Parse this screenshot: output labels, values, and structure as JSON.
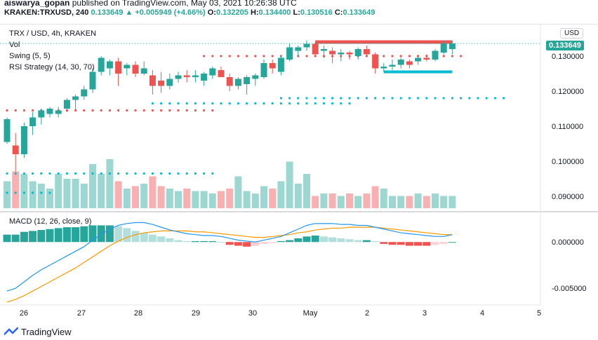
{
  "header": {
    "author": "aiswarya_gopan",
    "published_text": "published on TradingView.com, May 03, 2021 10:26:38 UTC",
    "symbol": "KRAKEN:TRXUSD, 240",
    "last": "0.133649",
    "change": "▲ +0.005949 (+4.66%)",
    "open_label": "O:",
    "open": "0.132205",
    "high_label": "H:",
    "high": "0.134400",
    "low_label": "L:",
    "low": "0.130516",
    "close_label": "C:",
    "close": "0.133649"
  },
  "legend": {
    "title": "TRX / USD, 4h, KRAKEN",
    "vol": "Vol",
    "swing": "Swing (5, 5)",
    "rsi": "RSI Strategy (14, 30, 70)",
    "macd": "MACD (12, 26, close, 9)"
  },
  "currency_button": "USD",
  "price_badge": "0.133649",
  "footer": {
    "brand": "TradingView"
  },
  "colors": {
    "up": "#26a69a",
    "down": "#ef5350",
    "macd": "#2196f3",
    "signal": "#ff9800",
    "swing_high": "#ef5350",
    "swing_low": "#00bcd4"
  },
  "chart_data": [
    {
      "type": "candlestick",
      "title": "TRX / USD, 4h, KRAKEN",
      "x_ticks": [
        "26",
        "27",
        "28",
        "29",
        "30",
        "May",
        "2",
        "3",
        "4",
        "5"
      ],
      "y_ticks": [
        "0.130000",
        "0.120000",
        "0.110000",
        "0.100000",
        "0.090000"
      ],
      "ylim": [
        0.086,
        0.139
      ],
      "candles": [
        {
          "o": 0.1055,
          "h": 0.1125,
          "l": 0.105,
          "c": 0.112
        },
        {
          "o": 0.1045,
          "h": 0.108,
          "l": 0.097,
          "c": 0.102
        },
        {
          "o": 0.102,
          "h": 0.111,
          "l": 0.101,
          "c": 0.11
        },
        {
          "o": 0.11,
          "h": 0.114,
          "l": 0.1075,
          "c": 0.1125
        },
        {
          "o": 0.1125,
          "h": 0.115,
          "l": 0.1105,
          "c": 0.1145
        },
        {
          "o": 0.1135,
          "h": 0.1155,
          "l": 0.1125,
          "c": 0.115
        },
        {
          "o": 0.1135,
          "h": 0.1155,
          "l": 0.1125,
          "c": 0.1145
        },
        {
          "o": 0.115,
          "h": 0.118,
          "l": 0.114,
          "c": 0.1175
        },
        {
          "o": 0.1175,
          "h": 0.119,
          "l": 0.1145,
          "c": 0.1185
        },
        {
          "o": 0.1185,
          "h": 0.1215,
          "l": 0.1175,
          "c": 0.1205
        },
        {
          "o": 0.1205,
          "h": 0.1265,
          "l": 0.1195,
          "c": 0.1255
        },
        {
          "o": 0.1255,
          "h": 0.13,
          "l": 0.1245,
          "c": 0.1295
        },
        {
          "o": 0.1265,
          "h": 0.129,
          "l": 0.1245,
          "c": 0.1285
        },
        {
          "o": 0.1285,
          "h": 0.1295,
          "l": 0.1215,
          "c": 0.125
        },
        {
          "o": 0.1265,
          "h": 0.128,
          "l": 0.1245,
          "c": 0.1275
        },
        {
          "o": 0.1275,
          "h": 0.1285,
          "l": 0.124,
          "c": 0.125
        },
        {
          "o": 0.125,
          "h": 0.1285,
          "l": 0.1245,
          "c": 0.1265
        },
        {
          "o": 0.1245,
          "h": 0.126,
          "l": 0.119,
          "c": 0.1215
        },
        {
          "o": 0.123,
          "h": 0.1255,
          "l": 0.1195,
          "c": 0.1215
        },
        {
          "o": 0.1215,
          "h": 0.125,
          "l": 0.1205,
          "c": 0.1235
        },
        {
          "o": 0.1235,
          "h": 0.1255,
          "l": 0.1225,
          "c": 0.1245
        },
        {
          "o": 0.1245,
          "h": 0.126,
          "l": 0.1225,
          "c": 0.124
        },
        {
          "o": 0.124,
          "h": 0.126,
          "l": 0.1225,
          "c": 0.1245
        },
        {
          "o": 0.123,
          "h": 0.1255,
          "l": 0.1215,
          "c": 0.125
        },
        {
          "o": 0.1245,
          "h": 0.127,
          "l": 0.1235,
          "c": 0.1265
        },
        {
          "o": 0.126,
          "h": 0.127,
          "l": 0.124,
          "c": 0.124
        },
        {
          "o": 0.124,
          "h": 0.125,
          "l": 0.12,
          "c": 0.1215
        },
        {
          "o": 0.1215,
          "h": 0.124,
          "l": 0.1205,
          "c": 0.1235
        },
        {
          "o": 0.122,
          "h": 0.1245,
          "l": 0.119,
          "c": 0.124
        },
        {
          "o": 0.1235,
          "h": 0.125,
          "l": 0.1215,
          "c": 0.1245
        },
        {
          "o": 0.124,
          "h": 0.129,
          "l": 0.1235,
          "c": 0.128
        },
        {
          "o": 0.128,
          "h": 0.129,
          "l": 0.125,
          "c": 0.1265
        },
        {
          "o": 0.1255,
          "h": 0.13,
          "l": 0.1245,
          "c": 0.1295
        },
        {
          "o": 0.129,
          "h": 0.1335,
          "l": 0.1285,
          "c": 0.1325
        },
        {
          "o": 0.1315,
          "h": 0.133,
          "l": 0.13,
          "c": 0.1325
        },
        {
          "o": 0.1325,
          "h": 0.1345,
          "l": 0.1315,
          "c": 0.1335
        },
        {
          "o": 0.1335,
          "h": 0.134,
          "l": 0.13,
          "c": 0.1305
        },
        {
          "o": 0.1315,
          "h": 0.133,
          "l": 0.1295,
          "c": 0.132
        },
        {
          "o": 0.1315,
          "h": 0.1325,
          "l": 0.128,
          "c": 0.1305
        },
        {
          "o": 0.1305,
          "h": 0.132,
          "l": 0.1285,
          "c": 0.131
        },
        {
          "o": 0.131,
          "h": 0.1315,
          "l": 0.129,
          "c": 0.1305
        },
        {
          "o": 0.13,
          "h": 0.1325,
          "l": 0.129,
          "c": 0.132
        },
        {
          "o": 0.132,
          "h": 0.133,
          "l": 0.13,
          "c": 0.1305
        },
        {
          "o": 0.1305,
          "h": 0.131,
          "l": 0.125,
          "c": 0.1265
        },
        {
          "o": 0.1265,
          "h": 0.128,
          "l": 0.1255,
          "c": 0.127
        },
        {
          "o": 0.127,
          "h": 0.129,
          "l": 0.126,
          "c": 0.1275
        },
        {
          "o": 0.1275,
          "h": 0.1295,
          "l": 0.1265,
          "c": 0.129
        },
        {
          "o": 0.1285,
          "h": 0.129,
          "l": 0.1265,
          "c": 0.1275
        },
        {
          "o": 0.1285,
          "h": 0.13,
          "l": 0.1275,
          "c": 0.1295
        },
        {
          "o": 0.1295,
          "h": 0.1305,
          "l": 0.1285,
          "c": 0.129
        },
        {
          "o": 0.129,
          "h": 0.132,
          "l": 0.1285,
          "c": 0.1315
        },
        {
          "o": 0.131,
          "h": 0.1345,
          "l": 0.1305,
          "c": 0.1335
        },
        {
          "o": 0.132,
          "h": 0.1344,
          "l": 0.1305,
          "c": 0.1336
        }
      ],
      "volume": [
        0.55,
        0.75,
        0.7,
        0.55,
        0.5,
        0.4,
        0.7,
        0.6,
        0.6,
        0.5,
        0.9,
        0.7,
        1.0,
        0.55,
        0.4,
        0.45,
        0.5,
        0.65,
        0.45,
        0.4,
        0.35,
        0.4,
        0.35,
        0.35,
        0.3,
        0.35,
        0.4,
        0.65,
        0.35,
        0.3,
        0.45,
        0.4,
        0.55,
        0.95,
        0.5,
        0.7,
        0.25,
        0.3,
        0.3,
        0.25,
        0.3,
        0.25,
        0.3,
        0.45,
        0.4,
        0.25,
        0.25,
        0.25,
        0.3,
        0.25,
        0.3,
        0.25,
        0.25
      ],
      "swing_high": [
        {
          "from": 0,
          "to": 24,
          "value": 0.1145
        },
        {
          "from": 23,
          "to": 53,
          "value": 0.13
        }
      ],
      "swing_low": [
        {
          "from": 0,
          "to": 24,
          "value": 0.0965
        },
        {
          "from": 0,
          "to": 5,
          "value": 0.091
        },
        {
          "from": 17,
          "to": 40,
          "value": 0.1165
        },
        {
          "from": 32,
          "to": 58,
          "value": 0.118
        }
      ],
      "rsi_sell_zone": {
        "from": 36,
        "to": 52,
        "value": 0.134
      },
      "rsi_buy_zone": {
        "from": 44,
        "to": 52,
        "value": 0.1255
      }
    },
    {
      "type": "line",
      "title": "MACD (12, 26, close, 9)",
      "y_ticks": [
        "0.000000",
        "-0.005000"
      ],
      "ylim": [
        -0.0068,
        0.0032
      ],
      "macd": [
        -0.0053,
        -0.005,
        -0.0043,
        -0.0036,
        -0.003,
        -0.0025,
        -0.002,
        -0.0015,
        -0.001,
        -0.0005,
        0.0002,
        0.0008,
        0.0014,
        0.0018,
        0.002,
        0.0021,
        0.0021,
        0.0019,
        0.0016,
        0.0013,
        0.0011,
        0.0009,
        0.0008,
        0.0007,
        0.0007,
        0.0006,
        0.0004,
        0.0002,
        0.0001,
        0.0,
        0.0002,
        0.0004,
        0.0006,
        0.001,
        0.0014,
        0.0018,
        0.002,
        0.002,
        0.002,
        0.0019,
        0.0019,
        0.0018,
        0.0018,
        0.0016,
        0.0014,
        0.0012,
        0.001,
        0.0009,
        0.0008,
        0.0007,
        0.0006,
        0.0006,
        0.0008
      ],
      "signal": [
        -0.0065,
        -0.0062,
        -0.0058,
        -0.0053,
        -0.0048,
        -0.0043,
        -0.0038,
        -0.0033,
        -0.0028,
        -0.0022,
        -0.0016,
        -0.001,
        -0.0004,
        0.0001,
        0.0005,
        0.0008,
        0.001,
        0.0011,
        0.0012,
        0.0012,
        0.0012,
        0.0012,
        0.0011,
        0.0011,
        0.001,
        0.0009,
        0.0008,
        0.0007,
        0.0006,
        0.0005,
        0.0005,
        0.0006,
        0.0007,
        0.0008,
        0.001,
        0.0011,
        0.0013,
        0.0014,
        0.0015,
        0.0015,
        0.0016,
        0.0016,
        0.0016,
        0.0016,
        0.0015,
        0.0014,
        0.0013,
        0.0012,
        0.0011,
        0.001,
        0.0009,
        0.0008,
        0.0008
      ],
      "histogram": [
        0.0008,
        0.0008,
        0.0011,
        0.0012,
        0.0013,
        0.0014,
        0.0015,
        0.0016,
        0.0016,
        0.0017,
        0.0018,
        0.0018,
        0.0018,
        0.0017,
        0.0015,
        0.0012,
        0.001,
        0.0008,
        0.0006,
        0.0004,
        0.0002,
        0.0001,
        0.0001,
        0.0001,
        0.0001,
        0.0,
        -0.0003,
        -0.0004,
        -0.0005,
        -0.0004,
        -0.0002,
        -0.0001,
        0.0001,
        0.0002,
        0.0004,
        0.0006,
        0.0007,
        0.0006,
        0.0005,
        0.0004,
        0.0003,
        0.0002,
        0.0002,
        0.0001,
        -0.0002,
        -0.0003,
        -0.0003,
        -0.0004,
        -0.0004,
        -0.0004,
        -0.0003,
        -0.0002,
        0.0
      ]
    }
  ]
}
